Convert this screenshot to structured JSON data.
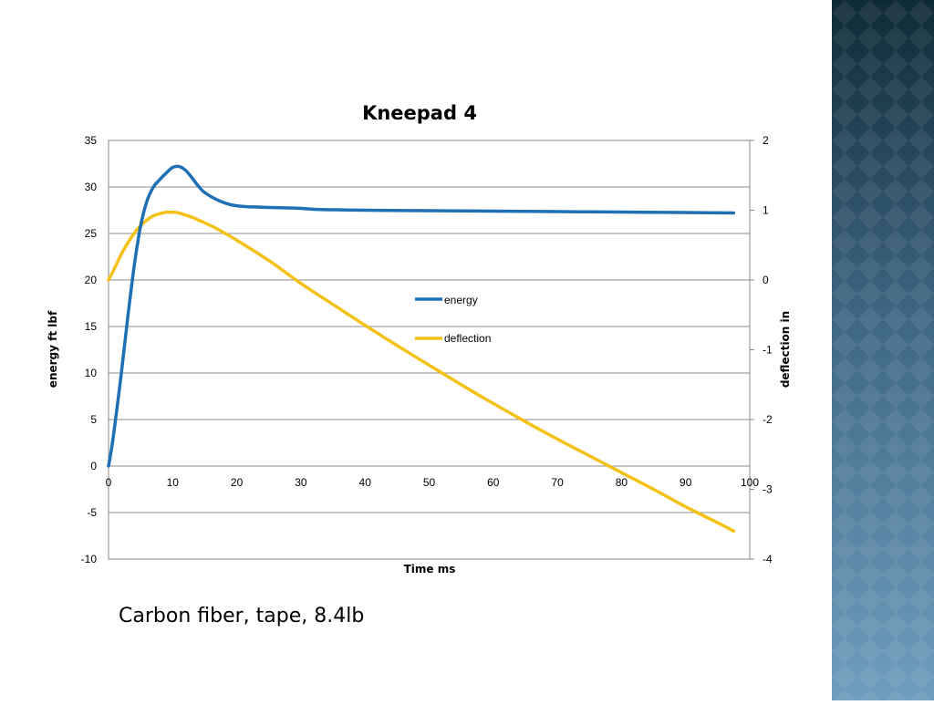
{
  "slide": {
    "caption": "Carbon fiber, tape, 8.4lb"
  },
  "colors": {
    "energy": "#1f6fb5",
    "deflection": "#f5c116",
    "side_panel_top": "#0e2a36",
    "side_panel_bottom": "#6f9dbd"
  },
  "chart_data": {
    "type": "line",
    "title": "Kneepad 4",
    "xlabel": "Time ms",
    "ylabel": "energy ft lbf",
    "y2label": "deflection in",
    "xlim": [
      0,
      100
    ],
    "ylim": [
      -10,
      35
    ],
    "y2lim": [
      -4,
      2
    ],
    "x_ticks": [
      "0",
      "10",
      "20",
      "30",
      "40",
      "50",
      "60",
      "70",
      "80",
      "90",
      "100"
    ],
    "y_ticks": [
      "35",
      "30",
      "25",
      "20",
      "15",
      "10",
      "5",
      "0",
      "-5",
      "-10"
    ],
    "y2_ticks": [
      "2",
      "1",
      "0",
      "-1",
      "-2",
      "-3",
      "-4"
    ],
    "grid": true,
    "legend_position": "center",
    "series": [
      {
        "name": "energy",
        "axis": "left",
        "x": [
          0,
          0.5,
          1,
          2,
          3,
          4,
          5,
          6,
          7,
          8,
          9,
          10,
          11,
          12,
          13,
          14,
          15,
          17,
          19,
          21,
          23,
          25,
          28,
          30,
          32,
          35,
          40,
          50,
          60,
          70,
          80,
          90,
          97.5
        ],
        "y": [
          0,
          2,
          4.5,
          10,
          16,
          21.5,
          25.8,
          28.5,
          30,
          30.8,
          31.5,
          32.1,
          32.2,
          31.8,
          31,
          30.1,
          29.4,
          28.6,
          28.1,
          27.9,
          27.85,
          27.8,
          27.75,
          27.7,
          27.6,
          27.55,
          27.5,
          27.45,
          27.4,
          27.35,
          27.3,
          27.25,
          27.2
        ]
      },
      {
        "name": "deflection",
        "axis": "right",
        "x": [
          0,
          1,
          2,
          3,
          4,
          5,
          6,
          7,
          8,
          9,
          10,
          11,
          12,
          13,
          14,
          15,
          17,
          20,
          25,
          30,
          35,
          40,
          45,
          50,
          55,
          60,
          65,
          70,
          75,
          80,
          85,
          90,
          95,
          97.5
        ],
        "y": [
          0,
          0.18,
          0.37,
          0.53,
          0.67,
          0.78,
          0.86,
          0.92,
          0.95,
          0.97,
          0.97,
          0.96,
          0.93,
          0.9,
          0.86,
          0.82,
          0.73,
          0.57,
          0.28,
          -0.05,
          -0.35,
          -0.65,
          -0.94,
          -1.22,
          -1.5,
          -1.77,
          -2.03,
          -2.28,
          -2.52,
          -2.76,
          -3.0,
          -3.25,
          -3.48,
          -3.6
        ]
      }
    ]
  }
}
